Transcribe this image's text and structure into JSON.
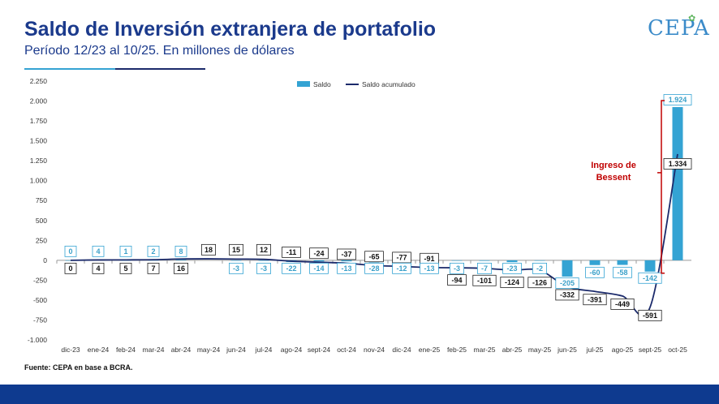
{
  "header": {
    "title": "Saldo de Inversión extranjera de portafolio",
    "subtitle": "Período 12/23 al 10/25. En millones de dólares",
    "logo_text": "CEPA"
  },
  "source": "Fuente: CEPA en base a BCRA.",
  "annotation": {
    "line1": "Ingreso de",
    "line2": "Bessent"
  },
  "colors": {
    "bar": "#34a3d3",
    "line": "#1b2a6b",
    "annotation": "#c00000",
    "title": "#1b3a8c",
    "footer": "#0e3a8f"
  },
  "chart_data": {
    "type": "bar+line",
    "categories": [
      "dic-23",
      "ene-24",
      "feb-24",
      "mar-24",
      "abr-24",
      "may-24",
      "jun-24",
      "jul-24",
      "ago-24",
      "sept-24",
      "oct-24",
      "nov-24",
      "dic-24",
      "ene-25",
      "feb-25",
      "mar-25",
      "abr-25",
      "may-25",
      "jun-25",
      "jul-25",
      "ago-25",
      "sept-25",
      "oct-25"
    ],
    "series": [
      {
        "name": "Saldo",
        "kind": "bar",
        "values": [
          0,
          4,
          1,
          2,
          8,
          null,
          -3,
          -3,
          -22,
          -14,
          -13,
          -28,
          -12,
          -13,
          -3,
          -7,
          -23,
          -2,
          -205,
          -60,
          -58,
          -142,
          1924
        ],
        "labels": [
          "0",
          "4",
          "1",
          "2",
          "8",
          "",
          "-3",
          "-3",
          "-22",
          "-14",
          "-13",
          "-28",
          "-12",
          "-13",
          "-3",
          "-7",
          "-23",
          "-2",
          "-205",
          "-60",
          "-58",
          "-142",
          "1.924"
        ]
      },
      {
        "name": "Saldo acumulado",
        "kind": "line",
        "values": [
          0,
          4,
          5,
          7,
          16,
          18,
          15,
          12,
          -11,
          -24,
          -37,
          -65,
          -77,
          -91,
          -94,
          -101,
          -124,
          -126,
          -332,
          -391,
          -449,
          -591,
          1334
        ],
        "labels": [
          "0",
          "4",
          "5",
          "7",
          "16",
          "18",
          "15",
          "12",
          "-11",
          "-24",
          "-37",
          "-65",
          "-77",
          "-91",
          "-94",
          "-101",
          "-124",
          "-126",
          "-332",
          "-391",
          "-449",
          "-591",
          "1.334"
        ]
      }
    ],
    "ylim": [
      -1000,
      2250
    ],
    "yticks": [
      -1000,
      -750,
      -500,
      -250,
      0,
      250,
      500,
      750,
      1000,
      1250,
      1500,
      1750,
      2000,
      2250
    ],
    "ytick_labels": [
      "-1.000",
      "-750",
      "-500",
      "-250",
      "0",
      "250",
      "500",
      "750",
      "1.000",
      "1.250",
      "1.500",
      "1.750",
      "2.000",
      "2.250"
    ],
    "legend": [
      "Saldo",
      "Saldo acumulado"
    ],
    "legend_position": "top-center"
  }
}
